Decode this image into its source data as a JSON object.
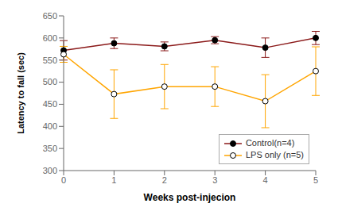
{
  "chart_data": {
    "type": "line",
    "x": [
      0,
      1,
      2,
      3,
      4,
      5
    ],
    "xlim": [
      0,
      5
    ],
    "xticks": [
      0,
      1,
      2,
      3,
      4,
      5
    ],
    "ylim": [
      300,
      650
    ],
    "yticks": [
      300,
      350,
      400,
      450,
      500,
      550,
      600,
      650
    ],
    "xlabel": "Weeks post-injecion",
    "ylabel": "Latency to fall (sec)",
    "grid": false,
    "legend": "lower right",
    "series": [
      {
        "name": "Control(n=4)",
        "color": "#8B1A1A",
        "marker": "filled_circle",
        "values": [
          572,
          588,
          581,
          595,
          578,
          600
        ],
        "yerr": [
          22,
          12,
          10,
          8,
          22,
          15
        ]
      },
      {
        "name": "LPS only (n=5)",
        "color": "#FFA500",
        "marker": "open_circle",
        "values": [
          563,
          473,
          490,
          490,
          457,
          525
        ],
        "yerr": [
          18,
          55,
          50,
          45,
          60,
          55
        ]
      }
    ]
  }
}
